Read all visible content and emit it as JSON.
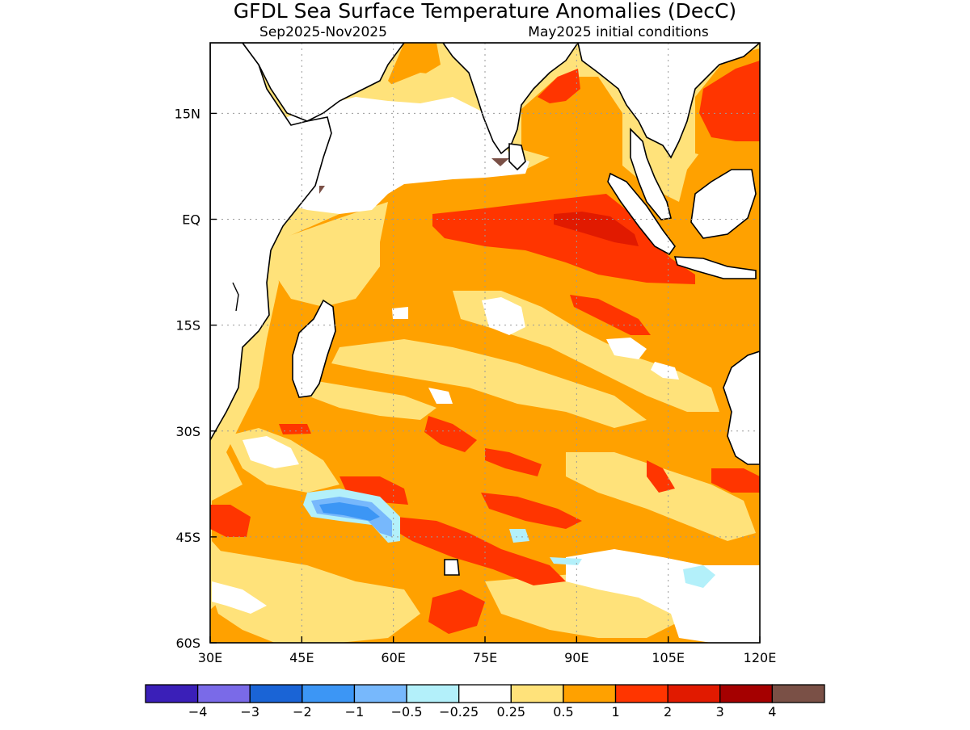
{
  "header": {
    "title": "GFDL Sea Surface Temperature Anomalies (DecC)",
    "period": "Sep2025-Nov2025",
    "init": "May2025 initial conditions"
  },
  "map": {
    "lon_range": [
      30,
      120
    ],
    "lat_range": [
      -60,
      25
    ],
    "x_ticks": [
      {
        "value": 30,
        "label": "30E"
      },
      {
        "value": 45,
        "label": "45E"
      },
      {
        "value": 60,
        "label": "60E"
      },
      {
        "value": 75,
        "label": "75E"
      },
      {
        "value": 90,
        "label": "90E"
      },
      {
        "value": 105,
        "label": "105E"
      },
      {
        "value": 120,
        "label": "120E"
      }
    ],
    "y_ticks": [
      {
        "value": 15,
        "label": "15N"
      },
      {
        "value": 0,
        "label": "EQ"
      },
      {
        "value": -15,
        "label": "15S"
      },
      {
        "value": -30,
        "label": "30S"
      },
      {
        "value": -45,
        "label": "45S"
      },
      {
        "value": -60,
        "label": "60S"
      }
    ],
    "grid": "dotted",
    "colors": {
      "band_025_05": "#ffe27a",
      "band_05_1": "#ffa100",
      "band_1_2": "#ff3500",
      "band_2_3": "#e11a00",
      "band_m1_m05": "#77b8fc",
      "band_m05_m025": "#b3f0fa",
      "band_m2_m1": "#3c96f5",
      "band_3_4": "#a50000",
      "band_gt4": "#7a5046",
      "land": "#ffffff",
      "coast": "#000000"
    }
  },
  "colorbar": {
    "colors": [
      "#3a1fb8",
      "#7a6ae8",
      "#1a64d6",
      "#3c96f5",
      "#77b8fc",
      "#b3f0fa",
      "#ffffff",
      "#ffe27a",
      "#ffa100",
      "#ff3500",
      "#e11a00",
      "#a50000",
      "#7a5046"
    ],
    "labels": [
      "−4",
      "−3",
      "−2",
      "−1",
      "−0.5",
      "−0.25",
      "0.25",
      "0.5",
      "1",
      "2",
      "3",
      "4"
    ]
  }
}
